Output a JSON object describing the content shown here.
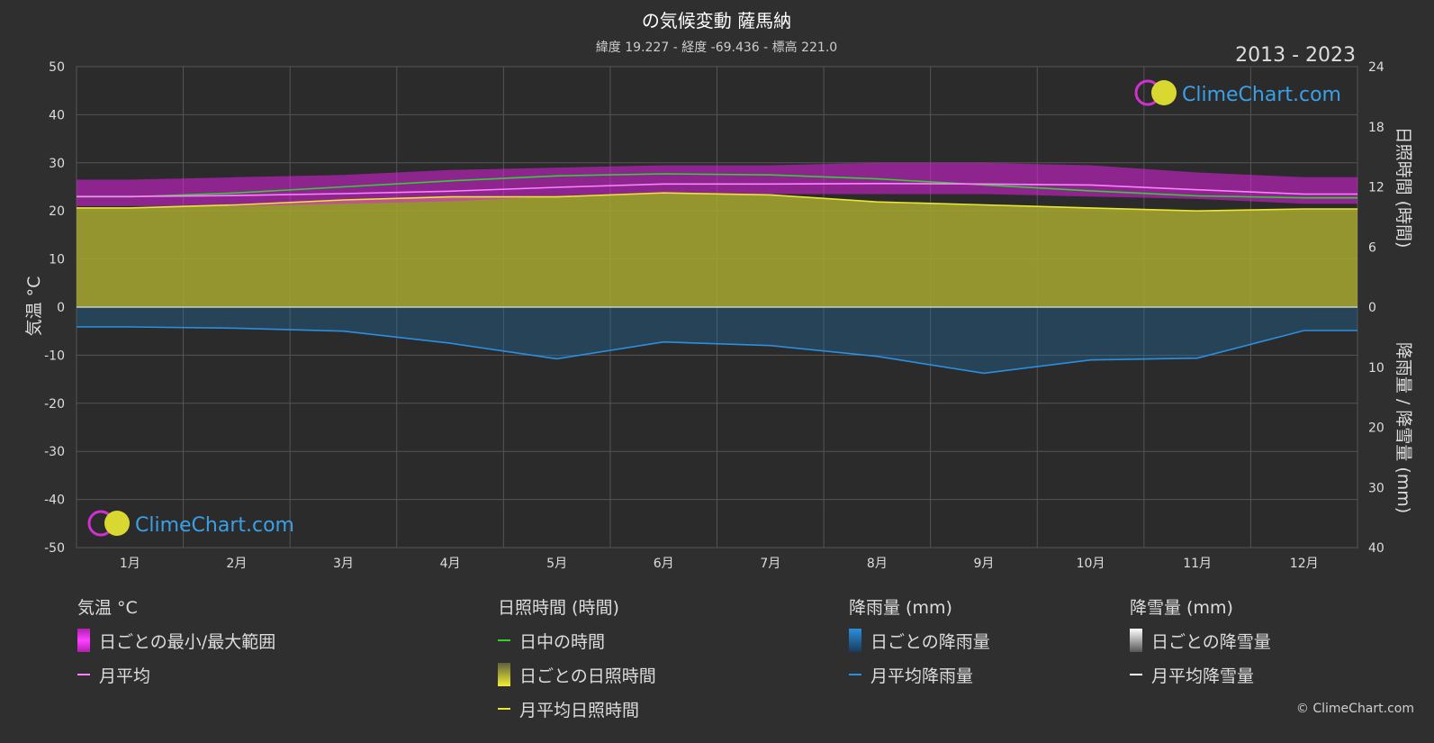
{
  "title": "の気候変動 薩馬納",
  "subtitle": "緯度 19.227 - 経度 -69.436 - 標高 221.0",
  "year_range": "2013 - 2023",
  "watermark": "ClimeChart.com",
  "copyright": "© ClimeChart.com",
  "colors": {
    "background": "#2f2f2f",
    "temp_range": "#e020e0",
    "temp_avg": "#ff80ff",
    "daylight": "#30d030",
    "sunshine_fill": "#a8a830",
    "sunshine_avg": "#e8e830",
    "rain_fill": "#1f6fa8",
    "rain_avg": "#2a8fe0",
    "snow_avg": "#ffffff"
  },
  "chart_data": {
    "type": "area",
    "categories": [
      "1月",
      "2月",
      "3月",
      "4月",
      "5月",
      "6月",
      "7月",
      "8月",
      "9月",
      "10月",
      "11月",
      "12月"
    ],
    "y_left": {
      "label": "気温 °C",
      "range": [
        -50,
        50
      ],
      "ticks": [
        50,
        40,
        30,
        20,
        10,
        0,
        -10,
        -20,
        -30,
        -40,
        -50
      ]
    },
    "y_right_top": {
      "label": "日照時間 (時間)",
      "range": [
        0,
        24
      ],
      "ticks": [
        24,
        18,
        12,
        6,
        0
      ]
    },
    "y_right_bottom": {
      "label": "降雨量 / 降雪量 (mm)",
      "range": [
        0,
        40
      ],
      "ticks": [
        0,
        10,
        20,
        30,
        40
      ]
    },
    "grid": true,
    "series": [
      {
        "name": "日中の時間",
        "axis": "sunshine",
        "values": [
          11.0,
          11.4,
          12.0,
          12.6,
          13.1,
          13.3,
          13.2,
          12.8,
          12.2,
          11.6,
          11.1,
          10.9
        ]
      },
      {
        "name": "月平均日照時間",
        "axis": "sunshine",
        "values": [
          9.9,
          10.2,
          10.7,
          11.0,
          11.0,
          11.4,
          11.2,
          10.5,
          10.2,
          9.9,
          9.6,
          9.8
        ]
      },
      {
        "name": "月平均",
        "axis": "temp",
        "values": [
          23.0,
          23.2,
          23.6,
          24.1,
          24.9,
          25.6,
          25.6,
          25.7,
          25.6,
          25.4,
          24.4,
          23.5
        ]
      },
      {
        "name": "日ごとの最小/最大範囲",
        "axis": "temp",
        "min": [
          21.0,
          21.0,
          21.5,
          22.0,
          23.0,
          23.5,
          23.5,
          23.5,
          23.5,
          23.0,
          22.5,
          21.5
        ],
        "max": [
          26.5,
          27.0,
          27.5,
          28.5,
          29.0,
          29.5,
          29.5,
          30.0,
          30.0,
          29.5,
          28.0,
          27.0
        ]
      },
      {
        "name": "月平均降雨量",
        "axis": "rain",
        "values": [
          3.3,
          3.5,
          4.0,
          6.0,
          8.6,
          5.8,
          6.4,
          8.2,
          11.0,
          8.8,
          8.5,
          3.9
        ]
      }
    ]
  },
  "legend": {
    "temp": {
      "header": "気温 °C",
      "items": [
        "日ごとの最小/最大範囲",
        "月平均"
      ]
    },
    "sun": {
      "header": "日照時間 (時間)",
      "items": [
        "日中の時間",
        "日ごとの日照時間",
        "月平均日照時間"
      ]
    },
    "rain": {
      "header": "降雨量 (mm)",
      "items": [
        "日ごとの降雨量",
        "月平均降雨量"
      ]
    },
    "snow": {
      "header": "降雪量 (mm)",
      "items": [
        "日ごとの降雪量",
        "月平均降雪量"
      ]
    }
  }
}
